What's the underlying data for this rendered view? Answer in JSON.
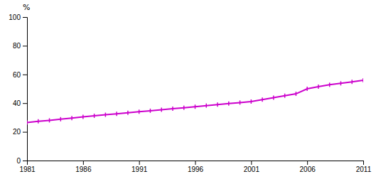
{
  "chart_data": {
    "type": "line",
    "ylabel": "%",
    "x": [
      1981,
      1982,
      1983,
      1984,
      1985,
      1986,
      1987,
      1988,
      1989,
      1990,
      1991,
      1992,
      1993,
      1994,
      1995,
      1996,
      1997,
      1998,
      1999,
      2000,
      2001,
      2002,
      2003,
      2004,
      2005,
      2006,
      2007,
      2008,
      2009,
      2010,
      2011
    ],
    "values": [
      26.5,
      27.3,
      28.0,
      28.8,
      29.6,
      30.4,
      31.2,
      31.9,
      32.6,
      33.3,
      34.0,
      34.7,
      35.4,
      36.1,
      36.8,
      37.5,
      38.3,
      39.0,
      39.7,
      40.4,
      41.1,
      42.5,
      43.8,
      45.2,
      46.5,
      50.0,
      51.5,
      52.8,
      53.8,
      54.8,
      56.0
    ],
    "color": "#cc00cc",
    "marker": "vline",
    "grid": false,
    "xlim": [
      1981,
      2011
    ],
    "xticks": [
      1981,
      1986,
      1991,
      1996,
      2001,
      2006,
      2011
    ],
    "ylim": [
      0,
      100
    ],
    "yticks": [
      0,
      20,
      40,
      60,
      80,
      100
    ]
  }
}
